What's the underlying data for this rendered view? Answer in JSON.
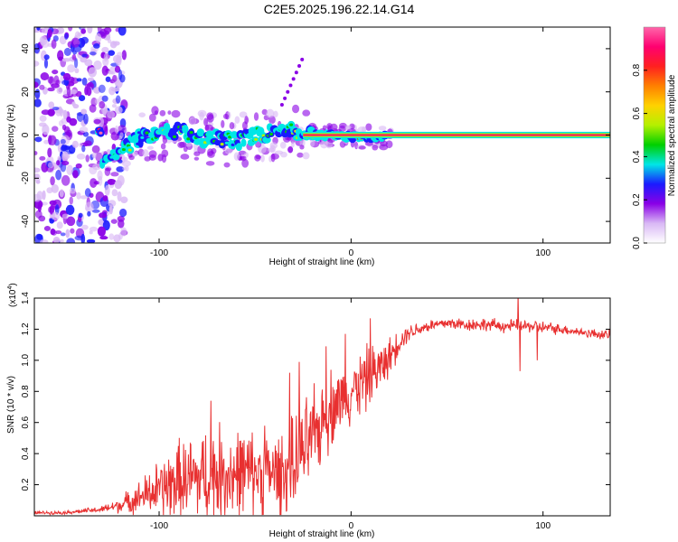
{
  "title": "C2E5.2025.196.22.14.G14",
  "colors": {
    "axis": "#000000",
    "snr_line": "#e83030",
    "colorbar": [
      "#ffffff",
      "#d9b8f5",
      "#8a00e6",
      "#1a1aff",
      "#00e6e6",
      "#00d000",
      "#b4f000",
      "#ffd200",
      "#ff8000",
      "#ff2020",
      "#ff0070",
      "#ff66aa"
    ]
  },
  "chart_data": [
    {
      "type": "heatmap",
      "xlabel": "Height of straight line (km)",
      "ylabel": "Frequency (Hz)",
      "xlim": [
        -165,
        135
      ],
      "ylim": [
        -50,
        50
      ],
      "x_ticks": [
        -100,
        0,
        100
      ],
      "y_ticks": [
        -40,
        -20,
        0,
        20,
        40
      ],
      "x_tick_labels": [
        "-100",
        "0",
        "100"
      ],
      "y_tick_labels": [
        "-40",
        "-20",
        "0",
        "20",
        "40"
      ],
      "colorbar": {
        "label": "Normalized spectral amplitude",
        "range": [
          0,
          1
        ],
        "ticks": [
          0.0,
          0.2,
          0.4,
          0.6,
          0.8
        ],
        "tick_labels": [
          "0.0",
          "0.2",
          "0.4",
          "0.6",
          "0.8"
        ]
      },
      "features": {
        "noise_region_x": [
          -165,
          -118
        ],
        "ridge_points": [
          {
            "x": -130,
            "y": -12,
            "a": 0.35
          },
          {
            "x": -120,
            "y": -8,
            "a": 0.45
          },
          {
            "x": -110,
            "y": -1,
            "a": 0.4
          },
          {
            "x": -100,
            "y": 0,
            "a": 0.45
          },
          {
            "x": -90,
            "y": 2,
            "a": 0.5
          },
          {
            "x": -80,
            "y": -2,
            "a": 0.45
          },
          {
            "x": -70,
            "y": -1,
            "a": 0.45
          },
          {
            "x": -60,
            "y": -3,
            "a": 0.4
          },
          {
            "x": -50,
            "y": 0,
            "a": 0.45
          },
          {
            "x": -40,
            "y": 1,
            "a": 0.5
          },
          {
            "x": -30,
            "y": 2,
            "a": 0.55
          },
          {
            "x": -20,
            "y": 0,
            "a": 0.6
          },
          {
            "x": -10,
            "y": 0,
            "a": 0.7
          },
          {
            "x": 0,
            "y": -1,
            "a": 0.75
          },
          {
            "x": 10,
            "y": -1,
            "a": 0.85
          },
          {
            "x": 15,
            "y": -1,
            "a": 0.9
          },
          {
            "x": 40,
            "y": 0,
            "a": 0.95
          },
          {
            "x": 80,
            "y": 0,
            "a": 0.95
          },
          {
            "x": 135,
            "y": 0,
            "a": 0.95
          }
        ]
      }
    },
    {
      "type": "line",
      "xlabel": "Height of straight line (km)",
      "ylabel": "SNR (10 * v/v)",
      "scale_label": "(x10^4)",
      "scale_label_base": "(x10",
      "scale_label_exp": "4",
      "xlim": [
        -165,
        135
      ],
      "ylim": [
        0,
        1.4
      ],
      "x_ticks": [
        -100,
        0,
        100
      ],
      "x_tick_labels": [
        "-100",
        "0",
        "100"
      ],
      "y_ticks": [
        0.2,
        0.4,
        0.6,
        0.8,
        1.0,
        1.2,
        1.4
      ],
      "y_tick_labels": [
        "0.2",
        "0.4",
        "0.6",
        "0.8",
        "1.0",
        "1.2",
        "1.4"
      ],
      "series": [
        {
          "x": [
            -165,
            -150,
            -130,
            -120,
            -110,
            -100,
            -90,
            -80,
            -70,
            -60,
            -50,
            -40,
            -30,
            -25,
            -20,
            -15,
            -10,
            -5,
            0,
            5,
            10,
            15,
            20,
            25,
            30,
            40,
            50,
            60,
            70,
            80,
            86,
            88,
            90,
            95,
            100,
            110,
            120,
            135
          ],
          "y": [
            0.02,
            0.02,
            0.04,
            0.07,
            0.12,
            0.17,
            0.22,
            0.24,
            0.27,
            0.27,
            0.28,
            0.27,
            0.3,
            0.4,
            0.5,
            0.6,
            0.7,
            0.75,
            0.8,
            0.85,
            0.9,
            0.95,
            1.02,
            1.12,
            1.18,
            1.22,
            1.24,
            1.23,
            1.23,
            1.22,
            1.22,
            1.22,
            1.22,
            1.22,
            1.21,
            1.2,
            1.18,
            1.16
          ],
          "envelope": [
            0.01,
            0.01,
            0.02,
            0.05,
            0.1,
            0.18,
            0.25,
            0.28,
            0.3,
            0.3,
            0.25,
            0.25,
            0.3,
            0.3,
            0.3,
            0.25,
            0.25,
            0.2,
            0.2,
            0.2,
            0.2,
            0.15,
            0.12,
            0.08,
            0.05,
            0.04,
            0.04,
            0.04,
            0.04,
            0.04,
            0.04,
            0.04,
            0.04,
            0.04,
            0.04,
            0.03,
            0.03,
            0.03
          ]
        }
      ],
      "spikes": [
        {
          "x": -73,
          "y": 0.74
        },
        {
          "x": -45,
          "y": 0.58
        },
        {
          "x": -32,
          "y": 0.92
        },
        {
          "x": -27,
          "y": 0.99
        },
        {
          "x": -13,
          "y": 1.09
        },
        {
          "x": -3,
          "y": 1.17
        },
        {
          "x": 10,
          "y": 1.27
        },
        {
          "x": 87,
          "y": 1.43
        },
        {
          "x": 88,
          "y": 0.93
        },
        {
          "x": 97,
          "y": 1.0
        }
      ]
    }
  ]
}
